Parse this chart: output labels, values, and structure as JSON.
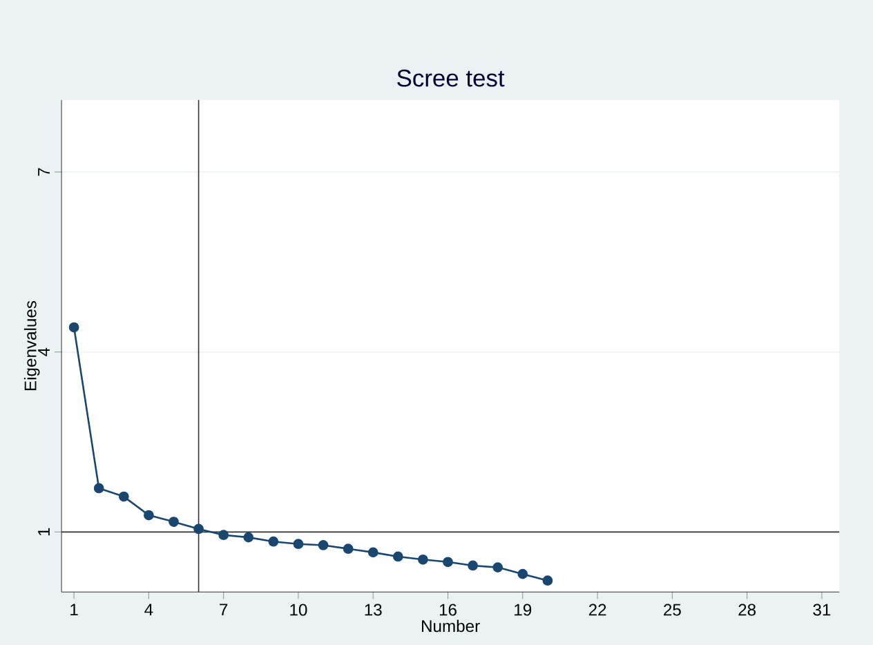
{
  "chart_data": {
    "type": "line",
    "title": "Scree test",
    "xlabel": "Number",
    "ylabel": "Eigenvalues",
    "x": [
      1,
      2,
      3,
      4,
      5,
      6,
      7,
      8,
      9,
      10,
      11,
      12,
      13,
      14,
      15,
      16,
      17,
      18,
      19,
      20
    ],
    "series": [
      {
        "color": "#1a476f",
        "values": [
          4.41,
          1.73,
          1.59,
          1.28,
          1.17,
          1.05,
          0.95,
          0.91,
          0.84,
          0.8,
          0.78,
          0.72,
          0.66,
          0.59,
          0.54,
          0.5,
          0.44,
          0.41,
          0.3,
          0.19
        ]
      }
    ],
    "xlim": [
      0.5,
      31.7
    ],
    "ylim": [
      0,
      8.2
    ],
    "xticks": [
      1,
      4,
      7,
      10,
      13,
      16,
      19,
      22,
      25,
      28,
      31
    ],
    "yticks": [
      1,
      4,
      7
    ],
    "grid": "y",
    "marker": "circle",
    "line_style": "solid",
    "ref_lines": [
      {
        "axis": "y",
        "value": 1,
        "color": "#333333"
      },
      {
        "axis": "x",
        "value": 6,
        "color": "#333333"
      }
    ]
  }
}
